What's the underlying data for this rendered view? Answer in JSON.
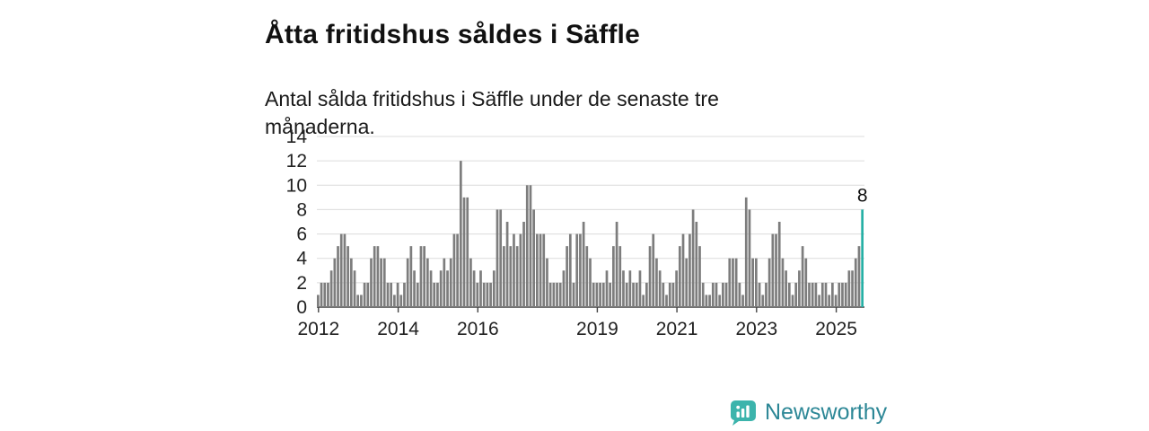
{
  "header": {
    "title": "Åtta fritidshus såldes i Säffle",
    "subtitle": "Antal sålda fritidshus i Säffle under de senaste tre månaderna."
  },
  "chart_data": {
    "type": "bar",
    "title": "Åtta fritidshus såldes i Säffle",
    "subtitle": "Antal sålda fritidshus i Säffle under de senaste tre månaderna.",
    "xlabel": "",
    "ylabel": "",
    "ylim": [
      0,
      14
    ],
    "y_ticks": [
      0,
      2,
      4,
      6,
      8,
      10,
      12,
      14
    ],
    "grid": true,
    "x_unit": "month",
    "x_start": "2012-01",
    "x_ticks": [
      {
        "label": "2012",
        "month_index": 0
      },
      {
        "label": "2014",
        "month_index": 24
      },
      {
        "label": "2016",
        "month_index": 48
      },
      {
        "label": "2019",
        "month_index": 84
      },
      {
        "label": "2021",
        "month_index": 108
      },
      {
        "label": "2023",
        "month_index": 132
      },
      {
        "label": "2025",
        "month_index": 156
      }
    ],
    "bar_color": "#7d7d7d",
    "highlight_color": "#27b0a6",
    "highlight_index": "last",
    "last_value_label": "8",
    "axis_color": "#444444",
    "gridline_color": "#dcdcdc",
    "tick_label_color": "#222222",
    "values": [
      1,
      2,
      2,
      2,
      3,
      4,
      5,
      6,
      6,
      5,
      4,
      3,
      1,
      1,
      2,
      2,
      4,
      5,
      5,
      4,
      4,
      2,
      2,
      1,
      2,
      1,
      2,
      4,
      5,
      3,
      2,
      5,
      5,
      4,
      3,
      2,
      2,
      3,
      4,
      3,
      4,
      6,
      6,
      12,
      9,
      9,
      4,
      3,
      2,
      3,
      2,
      2,
      2,
      3,
      8,
      8,
      5,
      7,
      5,
      6,
      5,
      6,
      7,
      10,
      10,
      8,
      6,
      6,
      6,
      4,
      2,
      2,
      2,
      2,
      3,
      5,
      6,
      2,
      6,
      6,
      7,
      5,
      4,
      2,
      2,
      2,
      2,
      3,
      2,
      5,
      7,
      5,
      3,
      2,
      3,
      2,
      2,
      3,
      1,
      2,
      5,
      6,
      4,
      3,
      2,
      1,
      2,
      2,
      3,
      5,
      6,
      4,
      6,
      8,
      7,
      5,
      2,
      1,
      1,
      2,
      2,
      1,
      2,
      2,
      4,
      4,
      4,
      2,
      1,
      9,
      8,
      4,
      4,
      2,
      1,
      2,
      4,
      6,
      6,
      7,
      4,
      3,
      2,
      1,
      2,
      3,
      5,
      4,
      2,
      2,
      2,
      1,
      2,
      2,
      1,
      2,
      1,
      2,
      2,
      2,
      3,
      3,
      4,
      5,
      8
    ]
  },
  "footer": {
    "brand": "Newsworthy",
    "brand_text_color": "#2c8796",
    "icon_color": "#3cb4ac",
    "icon": "bar-chart-bubble-icon"
  }
}
